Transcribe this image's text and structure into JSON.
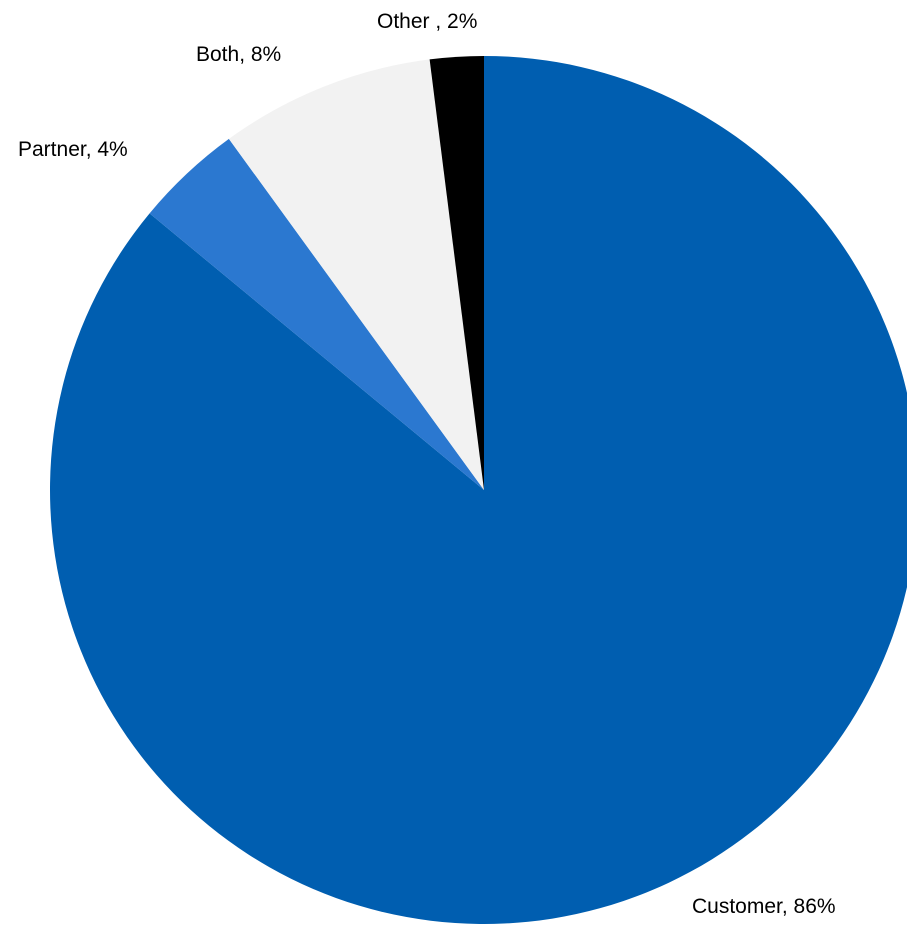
{
  "chart_data": {
    "type": "pie",
    "start_angle": "12 o'clock, clockwise",
    "slices": [
      {
        "category": "Customer",
        "value": 86,
        "label": "Customer, 86%",
        "color": "#005EB0"
      },
      {
        "category": "Partner",
        "value": 4,
        "label": "Partner, 4%",
        "color": "#2B78D0"
      },
      {
        "category": "Both",
        "value": 8,
        "label": "Both, 8%",
        "color": "#F2F2F2"
      },
      {
        "category": "Other",
        "value": 2,
        "label": "Other , 2%",
        "color": "#000000"
      }
    ]
  }
}
